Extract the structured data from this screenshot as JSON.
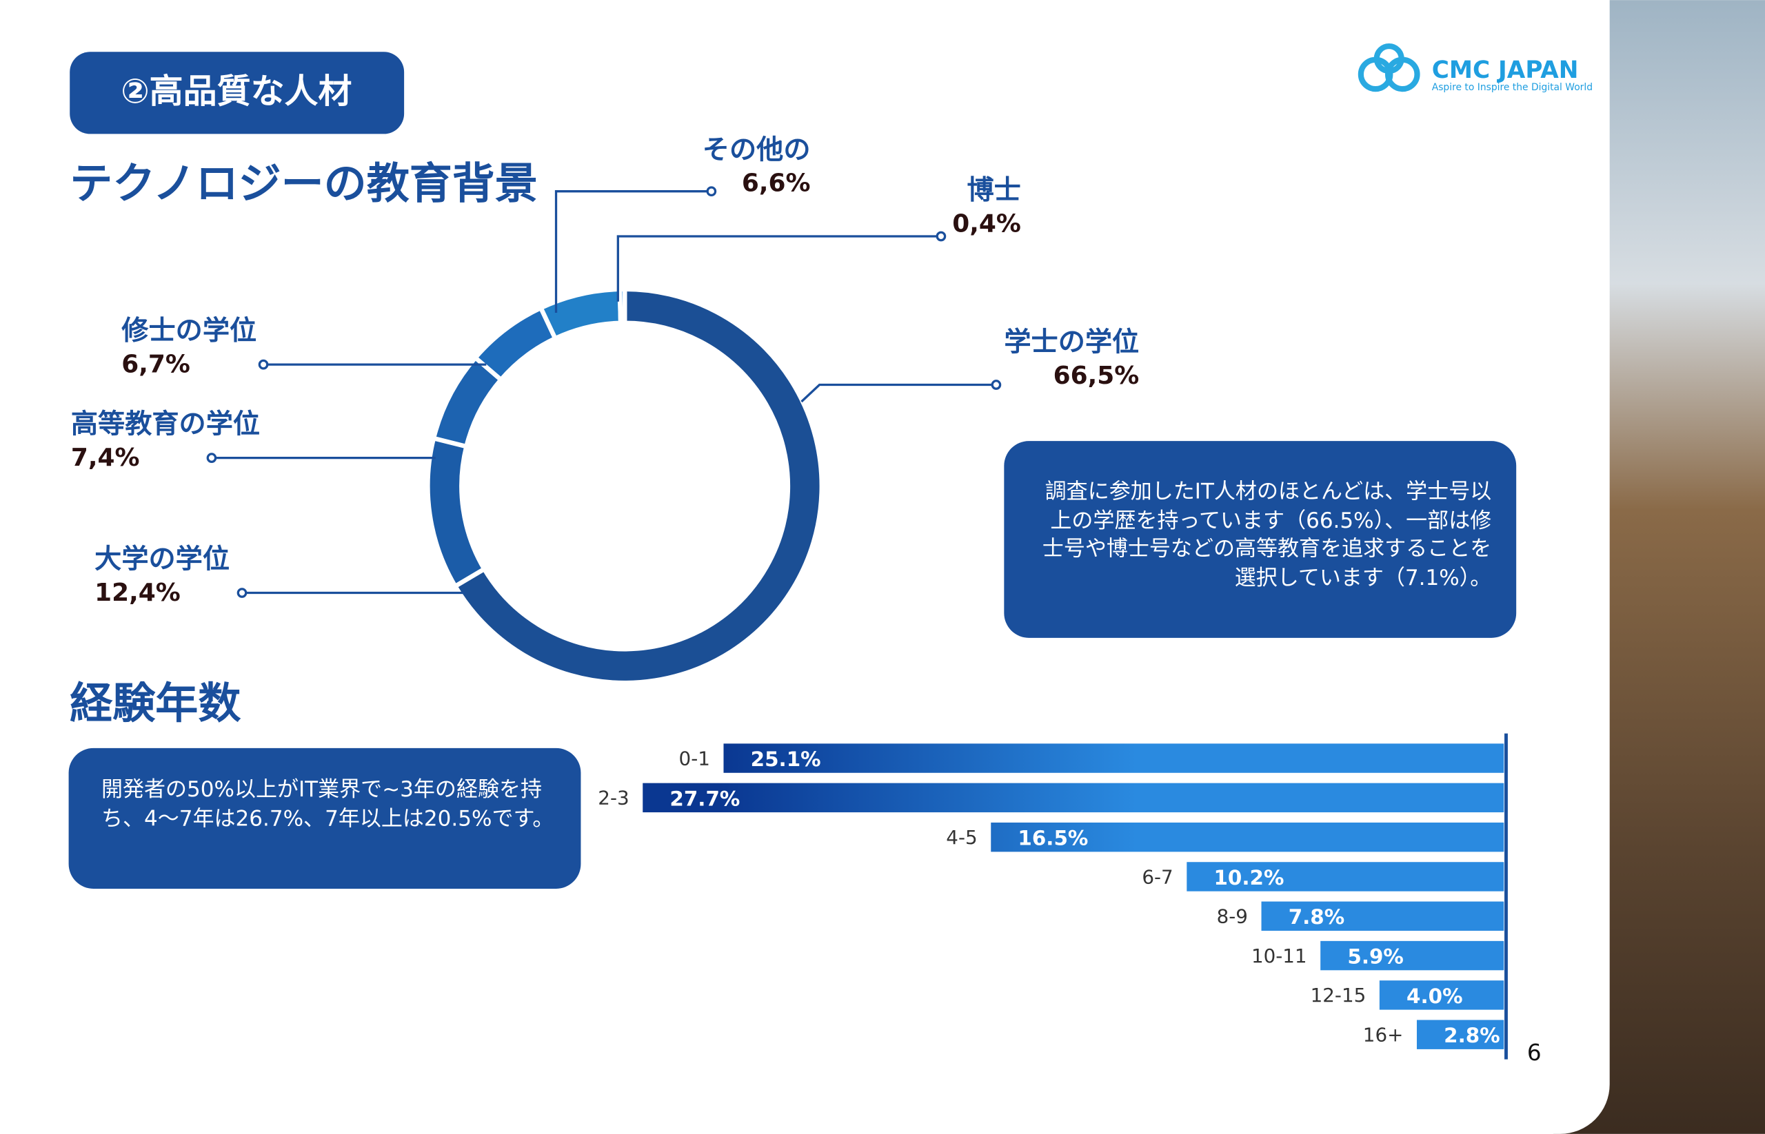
{
  "header": {
    "badge": "②高品質な人材",
    "logo_name": "CMC JAPAN",
    "logo_tagline": "Aspire to Inspire the Digital World",
    "page_number": "6"
  },
  "chart_data": [
    {
      "type": "pie",
      "donut": true,
      "title": "テクノロジーの教育背景",
      "categories": [
        "学士の学位",
        "大学の学位",
        "高等教育の学位",
        "修士の学位",
        "その他の",
        "博士"
      ],
      "values": [
        66.5,
        12.4,
        7.4,
        6.7,
        6.6,
        0.4
      ],
      "value_labels": [
        "66,5%",
        "12,4%",
        "7,4%",
        "6,7%",
        "6,6%",
        "0,4%"
      ],
      "colors": [
        "#1b4f95",
        "#1b5ca8",
        "#1d63b0",
        "#1e6cbb",
        "#2280c8",
        "#2a8ae0"
      ],
      "annotation": "調査に参加したIT人材のほとんどは、学士号以上の学歴を持っています（66.5%）、一部は修士号や博士号などの高等教育を追求することを選択しています（7.1%）。"
    },
    {
      "type": "bar",
      "orientation": "horizontal",
      "direction": "right-to-left",
      "title": "経験年数",
      "categories": [
        "0-1",
        "2-3",
        "4-5",
        "6-7",
        "8-9",
        "10-11",
        "12-15",
        "16+"
      ],
      "values": [
        25.1,
        27.7,
        16.5,
        10.2,
        7.8,
        5.9,
        4.0,
        2.8
      ],
      "value_labels": [
        "25.1%",
        "27.7%",
        "16.5%",
        "10.2%",
        "7.8%",
        "5.9%",
        "4.0%",
        "2.8%"
      ],
      "color": "#2a8ae0",
      "gradient_from": "#0a3791",
      "annotation": "開発者の50%以上がIT業界で~3年の経験を持ち、4〜7年は26.7%、7年以上は20.5%です。"
    }
  ]
}
